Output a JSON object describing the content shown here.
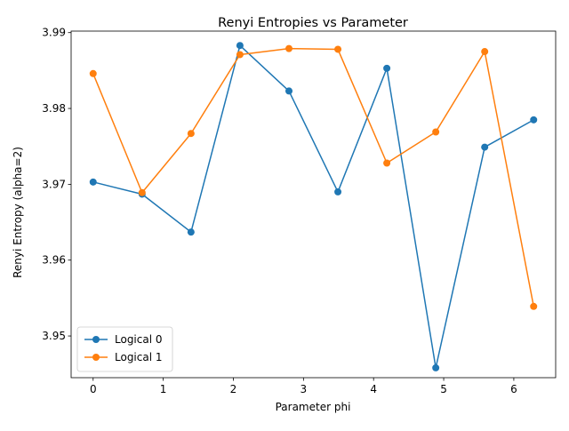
{
  "chart_data": {
    "type": "line",
    "title": "Renyi Entropies vs Parameter",
    "xlabel": "Parameter phi",
    "ylabel": "Renyi Entropy (alpha=2)",
    "x": [
      0,
      0.698,
      1.396,
      2.094,
      2.793,
      3.491,
      4.189,
      4.887,
      5.585,
      6.283
    ],
    "xlim": [
      -0.314,
      6.597
    ],
    "ylim": [
      3.9445,
      3.9902
    ],
    "xticks": [
      0,
      1,
      2,
      3,
      4,
      5,
      6
    ],
    "xtick_labels": [
      "0",
      "1",
      "2",
      "3",
      "4",
      "5",
      "6"
    ],
    "yticks": [
      3.95,
      3.96,
      3.97,
      3.98,
      3.99
    ],
    "ytick_labels": [
      "3.95",
      "3.96",
      "3.97",
      "3.98",
      "3.99"
    ],
    "grid": false,
    "legend_position": "lower-left",
    "series": [
      {
        "name": "Logical 0",
        "color": "#1f77b4",
        "marker": "circle",
        "values": [
          3.9703,
          3.9687,
          3.9637,
          3.9883,
          3.9823,
          3.969,
          3.9853,
          3.9458,
          3.9749,
          3.9785
        ]
      },
      {
        "name": "Logical 1",
        "color": "#ff7f0e",
        "marker": "circle",
        "values": [
          3.9846,
          3.9689,
          3.9767,
          3.9871,
          3.9879,
          3.9878,
          3.9728,
          3.9769,
          3.9875,
          3.9539
        ]
      }
    ]
  }
}
